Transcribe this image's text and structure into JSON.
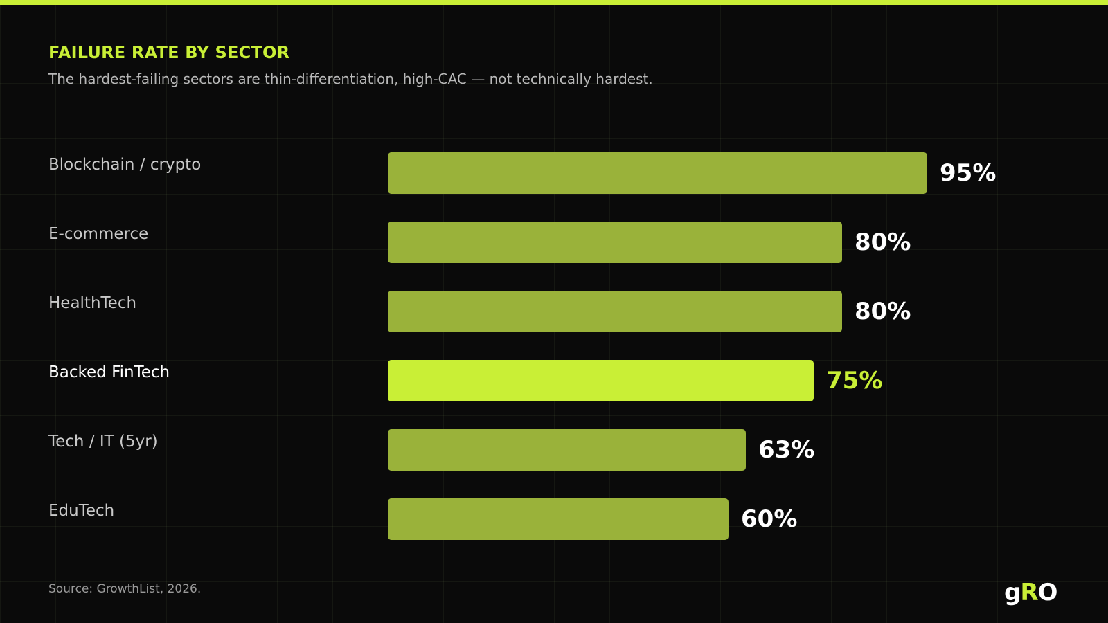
{
  "colors": {
    "background": "#0a0a0a",
    "accent": "#c9ef36",
    "bar": "#9ab23a",
    "highlight_bar": "#c9ef36"
  },
  "source": "Source: GrowthList, 2026.",
  "logo": {
    "g": "g",
    "r": "R",
    "o": "O"
  },
  "chart_data": {
    "type": "bar",
    "orientation": "horizontal",
    "title": "FAILURE RATE BY SECTOR",
    "subtitle": "The hardest-failing sectors are thin-differentiation, high-CAC — not technically hardest.",
    "categories": [
      "Blockchain / crypto",
      "E-commerce",
      "HealthTech",
      "Backed FinTech",
      "Tech / IT (5yr)",
      "EduTech"
    ],
    "values": [
      95,
      80,
      80,
      75,
      63,
      60
    ],
    "value_labels": [
      "95%",
      "80%",
      "80%",
      "75%",
      "63%",
      "60%"
    ],
    "highlight_index": 3,
    "xlim": [
      0,
      100
    ],
    "grid": true
  }
}
